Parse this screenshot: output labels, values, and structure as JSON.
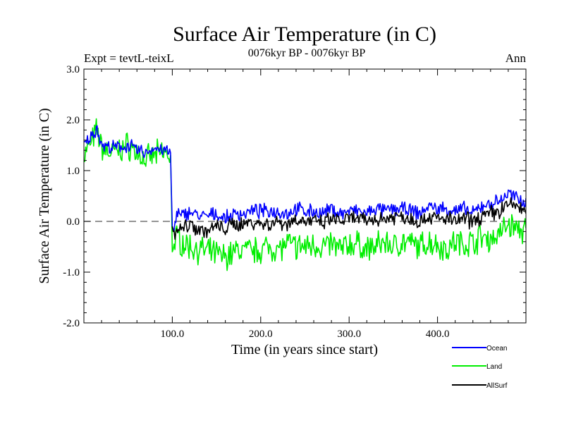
{
  "chart_data": {
    "type": "line",
    "title": "Surface Air Temperature (in C)",
    "subtitle": "0076kyr BP - 0076kyr BP",
    "expt_label": "Expt = tevtL-teixL",
    "season_label": "Ann",
    "xlabel": "Time (in years since start)",
    "ylabel": "Surface Air Temperature (in C)",
    "xlim": [
      0,
      500
    ],
    "ylim": [
      -2.0,
      3.0
    ],
    "x_ticks": [
      100,
      200,
      300,
      400
    ],
    "x_tick_labels": [
      "100.0",
      "200.0",
      "300.0",
      "400.0"
    ],
    "y_ticks": [
      -2,
      -1,
      0,
      1,
      2,
      3
    ],
    "y_tick_labels": [
      "-2.0",
      "-1.0",
      "0.0",
      "1.0",
      "2.0",
      "3.0"
    ],
    "zero_line": true,
    "grid": false,
    "legend_position": "bottom-right",
    "series": [
      {
        "name": "Ocean",
        "color": "#0000ff",
        "x": [
          0,
          10,
          15,
          20,
          30,
          40,
          50,
          60,
          70,
          80,
          90,
          98,
          99,
          100,
          102,
          105,
          110,
          120,
          130,
          140,
          150,
          160,
          170,
          180,
          190,
          200,
          210,
          220,
          230,
          240,
          250,
          260,
          270,
          280,
          290,
          300,
          310,
          320,
          330,
          340,
          350,
          360,
          370,
          380,
          390,
          400,
          410,
          420,
          430,
          440,
          450,
          460,
          470,
          480,
          490,
          500
        ],
        "y": [
          1.5,
          1.7,
          1.85,
          1.5,
          1.45,
          1.45,
          1.5,
          1.4,
          1.35,
          1.45,
          1.4,
          1.35,
          0.6,
          -0.1,
          -0.2,
          0.15,
          0.1,
          0.2,
          0.1,
          0.1,
          0.15,
          0.05,
          0.15,
          0.15,
          0.2,
          0.2,
          0.2,
          0.2,
          0.15,
          0.25,
          0.2,
          0.2,
          0.15,
          0.25,
          0.15,
          0.2,
          0.2,
          0.15,
          0.25,
          0.2,
          0.25,
          0.25,
          0.2,
          0.15,
          0.3,
          0.25,
          0.25,
          0.2,
          0.25,
          0.15,
          0.3,
          0.35,
          0.4,
          0.55,
          0.45,
          0.4
        ]
      },
      {
        "name": "Land",
        "color": "#00ee00",
        "x": [
          0,
          10,
          15,
          20,
          30,
          40,
          50,
          60,
          70,
          80,
          90,
          98,
          99,
          100,
          102,
          105,
          110,
          120,
          130,
          140,
          150,
          160,
          170,
          180,
          190,
          200,
          210,
          220,
          230,
          240,
          250,
          260,
          270,
          280,
          290,
          300,
          310,
          320,
          330,
          340,
          350,
          360,
          370,
          380,
          390,
          400,
          410,
          420,
          430,
          440,
          450,
          460,
          470,
          480,
          490,
          500
        ],
        "y": [
          1.3,
          1.6,
          1.8,
          1.45,
          1.35,
          1.4,
          1.5,
          1.35,
          1.2,
          1.3,
          1.35,
          1.3,
          0.5,
          -0.6,
          -0.5,
          -0.3,
          -0.4,
          -0.5,
          -0.55,
          -0.6,
          -0.65,
          -0.7,
          -0.6,
          -0.55,
          -0.6,
          -0.55,
          -0.5,
          -0.55,
          -0.45,
          -0.5,
          -0.5,
          -0.45,
          -0.5,
          -0.45,
          -0.55,
          -0.45,
          -0.45,
          -0.55,
          -0.5,
          -0.4,
          -0.5,
          -0.4,
          -0.45,
          -0.5,
          -0.4,
          -0.45,
          -0.55,
          -0.4,
          -0.45,
          -0.4,
          -0.3,
          -0.35,
          -0.25,
          -0.05,
          -0.15,
          -0.2
        ]
      },
      {
        "name": "AllSurf",
        "color": "#000000",
        "x": [
          100,
          102,
          105,
          110,
          120,
          130,
          140,
          150,
          160,
          170,
          180,
          190,
          200,
          210,
          220,
          230,
          240,
          250,
          260,
          270,
          280,
          290,
          300,
          310,
          320,
          330,
          340,
          350,
          360,
          370,
          380,
          390,
          400,
          410,
          420,
          430,
          440,
          450,
          460,
          470,
          480,
          490,
          500
        ],
        "y": [
          -0.1,
          -0.3,
          -0.1,
          -0.15,
          -0.05,
          -0.15,
          -0.2,
          -0.1,
          -0.15,
          -0.05,
          -0.05,
          0.0,
          -0.05,
          -0.05,
          0.0,
          -0.05,
          0.05,
          0.0,
          0.0,
          -0.05,
          0.05,
          0.0,
          0.05,
          0.05,
          0.0,
          0.05,
          0.05,
          0.1,
          0.1,
          0.05,
          0.0,
          0.1,
          0.05,
          0.05,
          0.0,
          0.05,
          0.0,
          0.1,
          0.15,
          0.2,
          0.35,
          0.3,
          0.2
        ]
      }
    ]
  }
}
